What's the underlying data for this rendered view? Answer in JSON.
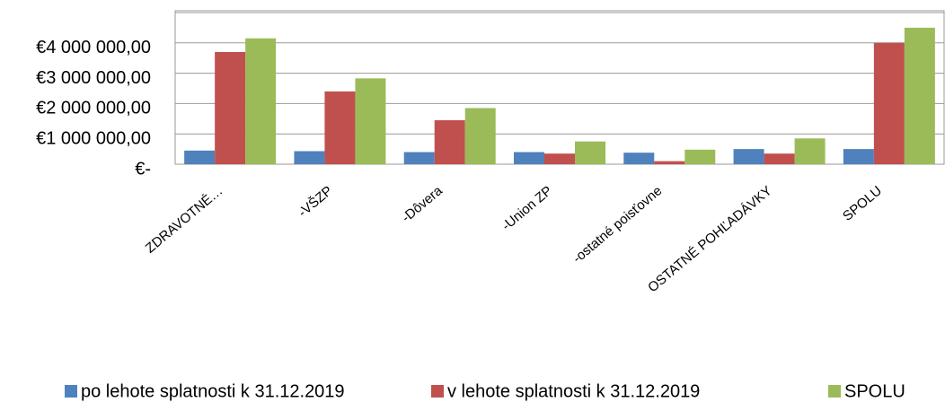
{
  "chart_data": {
    "type": "bar",
    "categories": [
      "ZDRAVOTNÉ…",
      "-VŠZP",
      "-Dôvera",
      "-Union ZP",
      "-ostatné poisťovne",
      "OSTATNÉ POHĽADÁVKY",
      "SPOLU"
    ],
    "series": [
      {
        "name": "po lehote splatnosti k 31.12.2019",
        "color": "#4f81bd",
        "values": [
          450000,
          430000,
          400000,
          400000,
          380000,
          500000,
          500000
        ]
      },
      {
        "name": "v lehote splatnosti k 31.12.2019",
        "color": "#c0504d",
        "values": [
          3700000,
          2400000,
          1450000,
          350000,
          100000,
          350000,
          4000000
        ]
      },
      {
        "name": "SPOLU",
        "color": "#9bbb59",
        "values": [
          4150000,
          2830000,
          1850000,
          750000,
          480000,
          850000,
          4500000
        ]
      }
    ],
    "ylim": [
      0,
      5000000
    ],
    "yticks": [
      {
        "value": 0,
        "label": "€-"
      },
      {
        "value": 1000000,
        "label": "€1 000 000,00"
      },
      {
        "value": 2000000,
        "label": "€2 000 000,00"
      },
      {
        "value": 3000000,
        "label": "€3 000 000,00"
      },
      {
        "value": 4000000,
        "label": "€4 000 000,00"
      },
      5000000
    ],
    "grid": true
  }
}
